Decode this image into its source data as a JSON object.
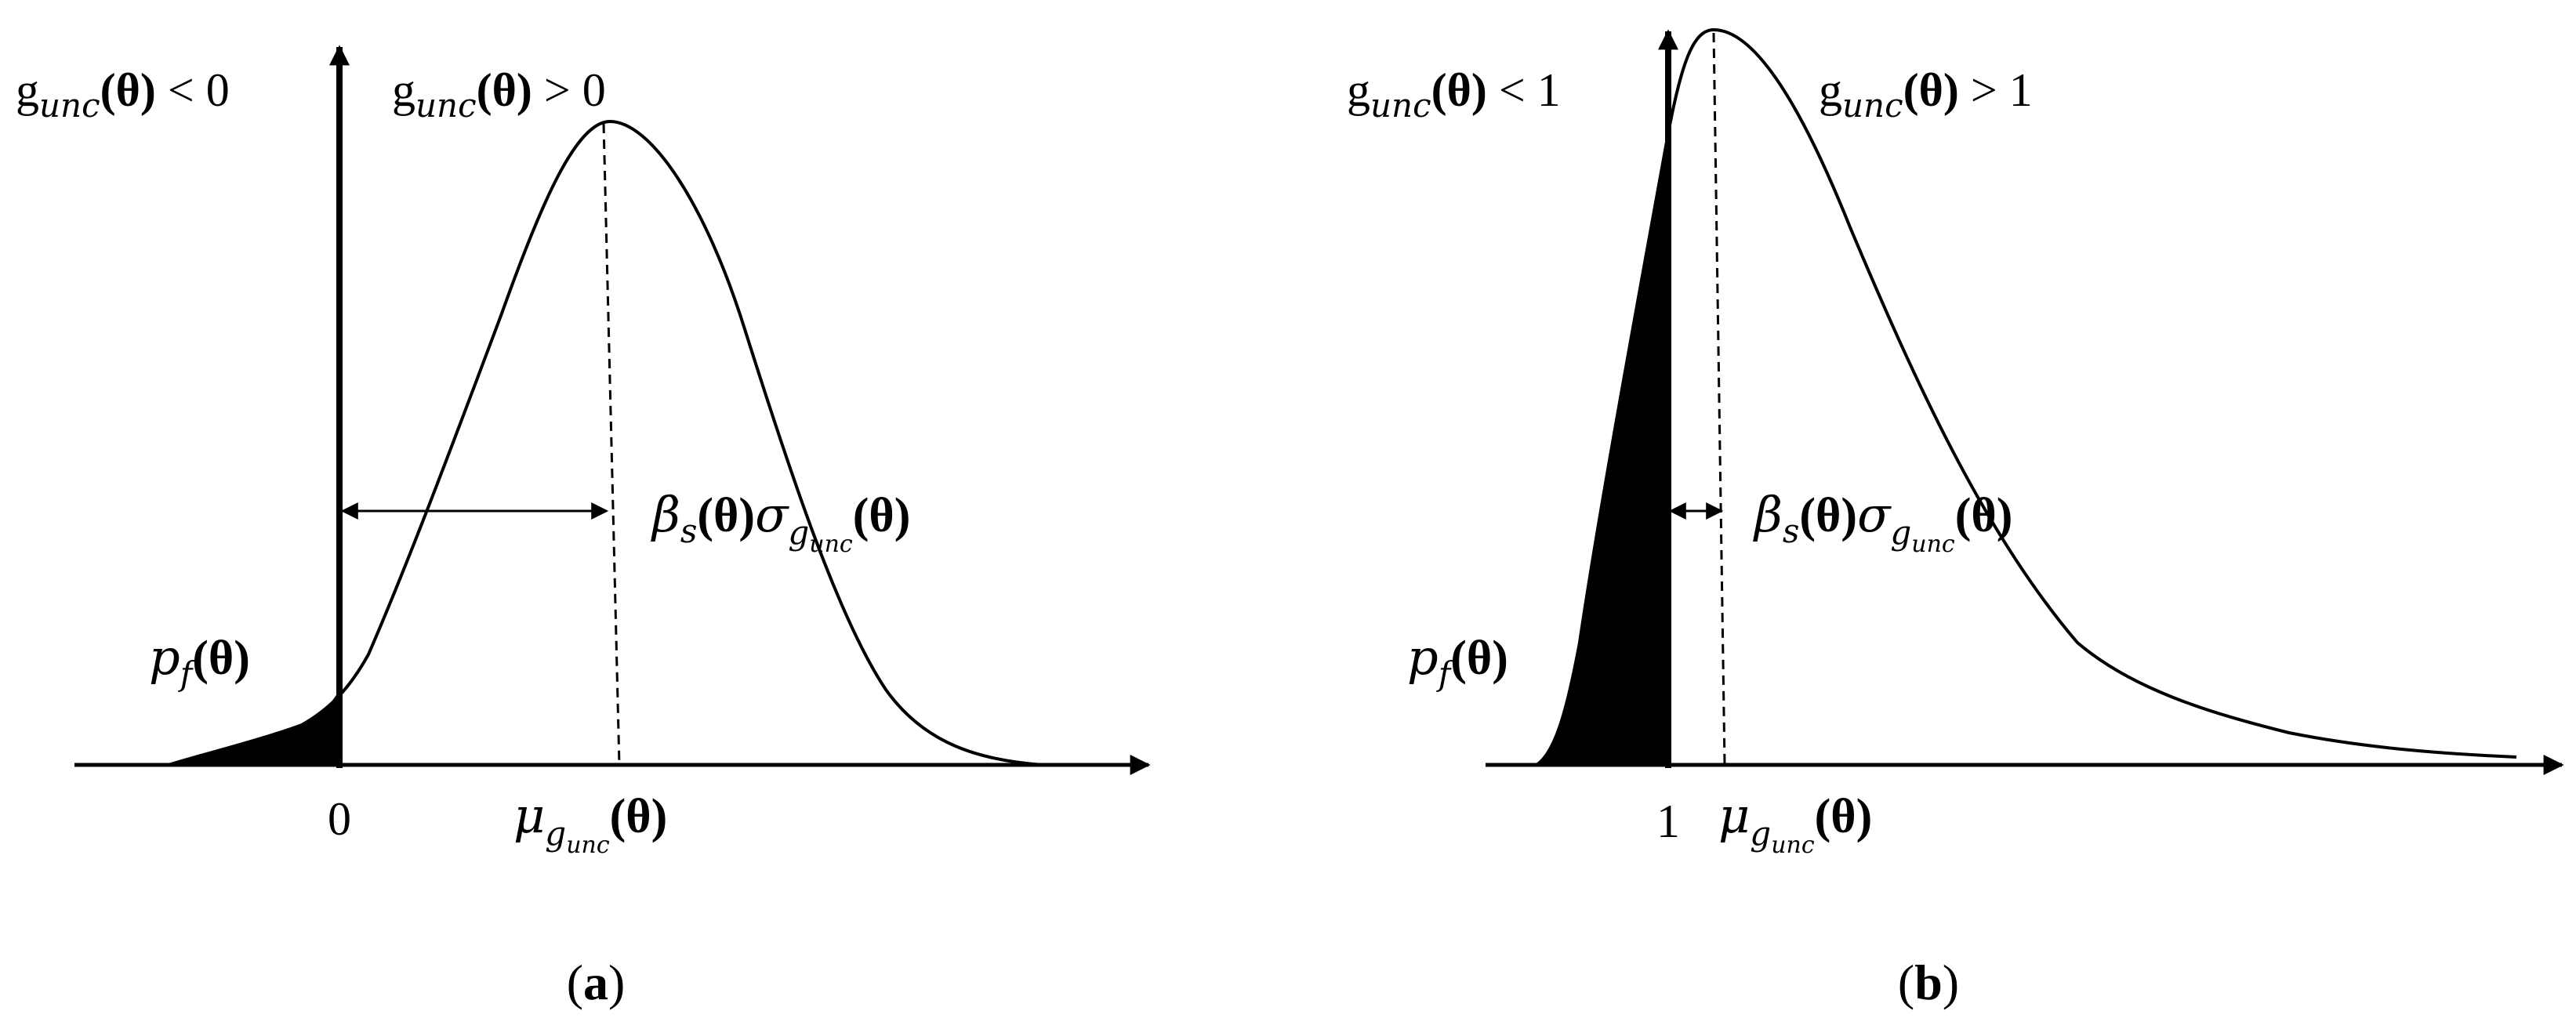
{
  "panels": [
    {
      "id": "a",
      "label_open": "(",
      "label": "a",
      "label_close": ")",
      "left_region": {
        "g": "g",
        "sub": "unc",
        "arg": "(θ)",
        "rel": " < 0"
      },
      "right_region": {
        "g": "g",
        "sub": "unc",
        "arg": "(θ)",
        "rel": " > 0"
      },
      "pf": {
        "p": "p",
        "sub": "f",
        "arg": "(θ)"
      },
      "beta_sigma": {
        "beta": "β",
        "beta_sub": "s",
        "arg1": "(θ)",
        "sigma": "σ",
        "sigma_sub_g": "g",
        "sigma_sub_unc": "unc",
        "arg2": "(θ)"
      },
      "threshold_tick": "0",
      "mean_label": {
        "mu": "μ",
        "sub_g": "g",
        "sub_unc": "unc",
        "arg": "(θ)"
      }
    },
    {
      "id": "b",
      "label_open": "(",
      "label": "b",
      "label_close": ")",
      "left_region": {
        "g": "g",
        "sub": "unc",
        "arg": "(θ)",
        "rel": " < 1"
      },
      "right_region": {
        "g": "g",
        "sub": "unc",
        "arg": "(θ)",
        "rel": " > 1"
      },
      "pf": {
        "p": "p",
        "sub": "f",
        "arg": "(θ)"
      },
      "beta_sigma": {
        "beta": "β",
        "beta_sub": "s",
        "arg1": "(θ)",
        "sigma": "σ",
        "sigma_sub_g": "g",
        "sigma_sub_unc": "unc",
        "arg2": "(θ)"
      },
      "threshold_tick": "1",
      "mean_label": {
        "mu": "μ",
        "sub_g": "g",
        "sub_unc": "unc",
        "arg": "(θ)"
      }
    }
  ],
  "colors": {
    "ink": "#000000",
    "background": "#ffffff"
  }
}
